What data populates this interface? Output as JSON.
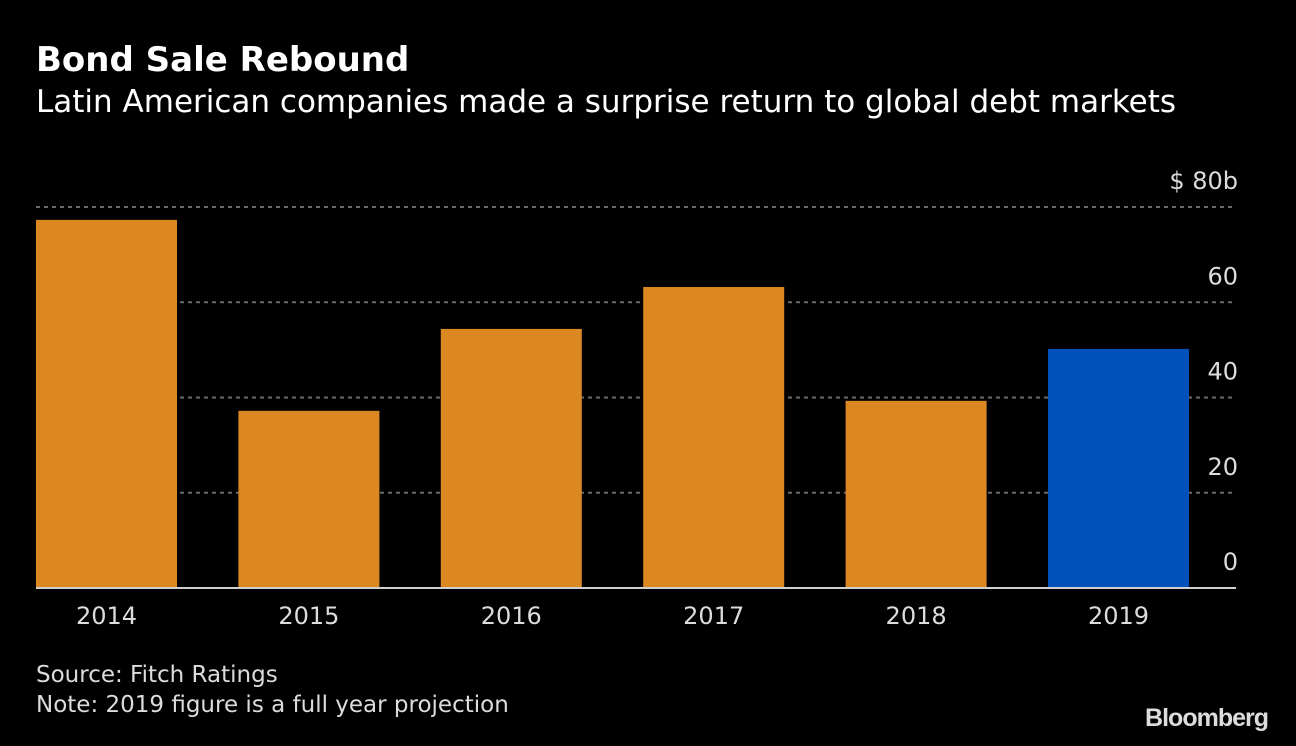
{
  "header": {
    "title": "Bond Sale Rebound",
    "subtitle": "Latin American companies made a surprise return to global debt markets"
  },
  "footer": {
    "source": "Source: Fitch Ratings",
    "note": "Note: 2019 figure is a full year projection",
    "brand": "Bloomberg"
  },
  "colors": {
    "background": "#000000",
    "bar": "#DB8823",
    "highlight_bar": "#0051BA",
    "grid": "#6b6b6b",
    "axis": "#cfcfcf",
    "text": "#dcdcdc"
  },
  "chart_data": {
    "type": "bar",
    "title": "Bond Sale Rebound",
    "subtitle": "Latin American companies made a surprise return to global debt markets",
    "categories": [
      "2014",
      "2015",
      "2016",
      "2017",
      "2018",
      "2019"
    ],
    "values": [
      77.3,
      37.2,
      54.4,
      63.2,
      39.3,
      50.2
    ],
    "highlight": [
      "2019"
    ],
    "unit": "$ billions",
    "xlabel": "",
    "ylabel": "",
    "ylim": [
      0,
      80
    ],
    "yticks": [
      0,
      20,
      40,
      60,
      80
    ],
    "ytick_labels": [
      "0",
      "20",
      "40",
      "60",
      "$ 80b"
    ],
    "y_axis_position": "right",
    "grid": true,
    "legend": "none"
  }
}
